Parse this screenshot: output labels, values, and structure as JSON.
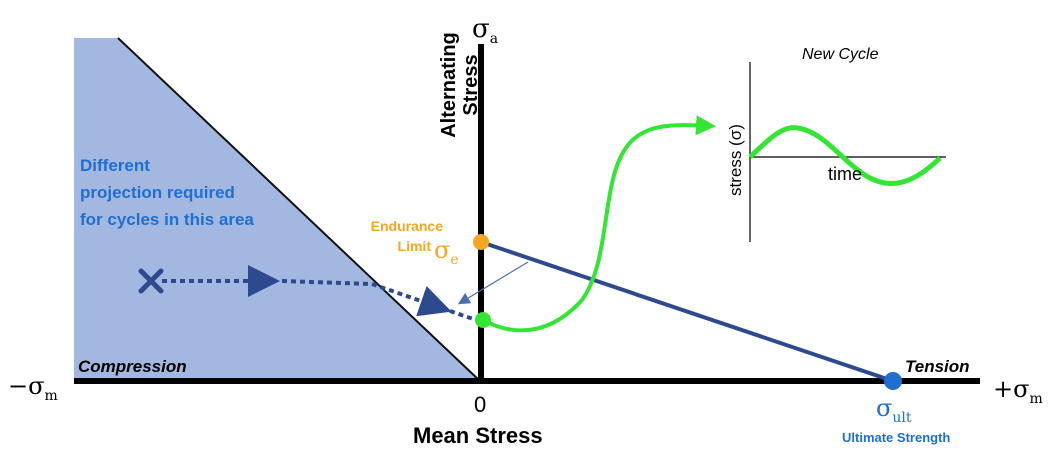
{
  "axes": {
    "y_symbol": "σ",
    "y_sub": "a",
    "y_title_line1": "Alternating",
    "y_title_line2": "Stress",
    "neg_x_symbol": "−σ",
    "neg_x_sub": "m",
    "pos_x_symbol": "+σ",
    "pos_x_sub": "m",
    "origin": "0",
    "x_title": "Mean Stress"
  },
  "regions": {
    "compression": "Compression",
    "tension": "Tension",
    "note_line1": "Different",
    "note_line2": "projection required",
    "note_line3": "for cycles in this area"
  },
  "endurance": {
    "label_line1": "Endurance",
    "label_line2": "Limit",
    "symbol": "σ",
    "sub": "e"
  },
  "ultimate": {
    "symbol": "σ",
    "sub": "ult",
    "label": "Ultimate Strength"
  },
  "inset": {
    "title": "New Cycle",
    "ylabel": "stress (σ)",
    "xlabel": "time"
  },
  "colors": {
    "shade": "#a3b8e0",
    "goodman_line": "#2e4a8e",
    "endurance": "#f5a623",
    "ultimate": "#1f6fd1",
    "cycle_curve": "#33e633",
    "note_text": "#1f6fd1"
  }
}
